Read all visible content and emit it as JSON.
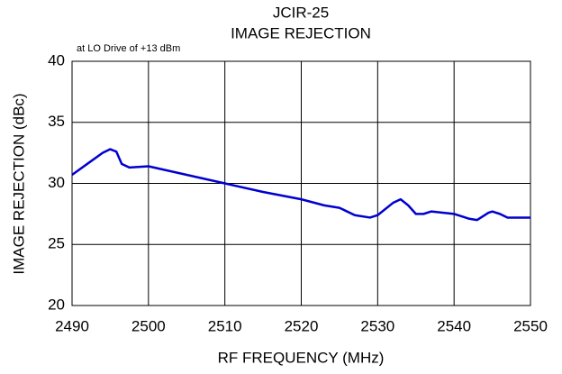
{
  "chart_data": {
    "type": "line",
    "title": "JCIR-25",
    "subtitle": "IMAGE REJECTION",
    "annotation": "at LO Drive of +13 dBm",
    "x_label": "RF FREQUENCY (MHz)",
    "y_label": "IMAGE REJECTION (dBc)",
    "x": [
      2490,
      2492,
      2494,
      2495,
      2495.8,
      2496.5,
      2497.5,
      2500,
      2505,
      2510,
      2515,
      2520,
      2523,
      2525,
      2527,
      2529,
      2530,
      2532,
      2533,
      2534,
      2535,
      2536,
      2537,
      2540,
      2542,
      2543,
      2544.5,
      2545,
      2546,
      2547,
      2550
    ],
    "series": [
      {
        "name": "Image Rejection",
        "color": "#0000d0",
        "values": [
          30.7,
          31.6,
          32.5,
          32.8,
          32.6,
          31.6,
          31.3,
          31.4,
          30.7,
          30.0,
          29.3,
          28.7,
          28.2,
          28.0,
          27.4,
          27.2,
          27.4,
          28.4,
          28.7,
          28.2,
          27.5,
          27.5,
          27.7,
          27.5,
          27.1,
          27.0,
          27.6,
          27.7,
          27.5,
          27.2,
          27.2
        ]
      }
    ],
    "xlim": [
      2490,
      2550
    ],
    "xticks": [
      2490,
      2500,
      2510,
      2520,
      2530,
      2540,
      2550
    ],
    "ylim": [
      20,
      40
    ],
    "yticks": [
      20,
      25,
      30,
      35,
      40
    ],
    "grid": true
  }
}
